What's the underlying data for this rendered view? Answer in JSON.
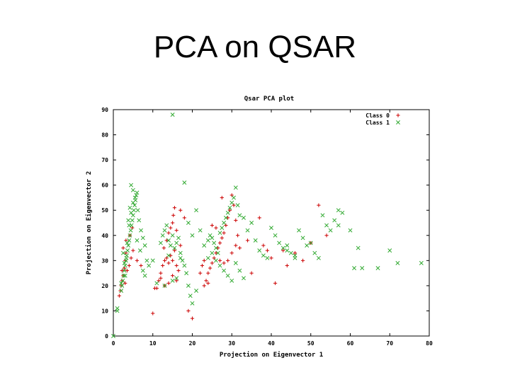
{
  "slide": {
    "title": "PCA on QSAR"
  },
  "chart_data": {
    "type": "scatter",
    "title": "Qsar PCA plot",
    "xlabel": "Projection on Eigenvector 1",
    "ylabel": "Projection on Eigenvector 2",
    "xlim": [
      0,
      80
    ],
    "ylim": [
      0,
      90
    ],
    "xticks": [
      0,
      10,
      20,
      30,
      40,
      50,
      60,
      70,
      80
    ],
    "yticks": [
      0,
      10,
      20,
      30,
      40,
      50,
      60,
      70,
      80,
      90
    ],
    "grid": false,
    "legend": "top-right",
    "series": [
      {
        "name": "Class 0",
        "marker": "+",
        "color": "#cc0000",
        "points": [
          [
            1.5,
            16
          ],
          [
            1.8,
            18
          ],
          [
            2,
            20
          ],
          [
            2.2,
            22
          ],
          [
            2.5,
            24
          ],
          [
            2.8,
            27
          ],
          [
            3,
            30
          ],
          [
            3.2,
            33
          ],
          [
            3.5,
            26
          ],
          [
            4,
            28
          ],
          [
            4.5,
            31
          ],
          [
            5,
            34
          ],
          [
            2.5,
            35
          ],
          [
            3.2,
            38
          ],
          [
            4.2,
            40
          ],
          [
            4.8,
            43
          ],
          [
            6,
            30
          ],
          [
            7,
            28
          ],
          [
            3,
            21
          ],
          [
            2.2,
            26
          ],
          [
            10,
            9
          ],
          [
            10.5,
            19
          ],
          [
            11,
            19
          ],
          [
            11.5,
            22
          ],
          [
            12,
            25
          ],
          [
            12.5,
            28
          ],
          [
            13,
            30
          ],
          [
            13.5,
            31
          ],
          [
            14,
            29
          ],
          [
            14.5,
            32
          ],
          [
            15,
            30
          ],
          [
            15.5,
            34
          ],
          [
            16,
            28
          ],
          [
            12.8,
            35
          ],
          [
            13.5,
            38
          ],
          [
            14,
            41
          ],
          [
            14.5,
            43
          ],
          [
            15,
            45
          ],
          [
            15.2,
            48
          ],
          [
            15.5,
            51
          ],
          [
            16,
            42
          ],
          [
            17,
            50
          ],
          [
            18,
            47
          ],
          [
            16.5,
            26
          ],
          [
            12,
            23
          ],
          [
            13,
            20
          ],
          [
            14,
            21
          ],
          [
            15,
            24
          ],
          [
            16,
            22
          ],
          [
            17,
            36
          ],
          [
            19,
            10
          ],
          [
            20,
            7
          ],
          [
            22,
            25
          ],
          [
            22.5,
            28
          ],
          [
            23,
            30
          ],
          [
            23.5,
            22
          ],
          [
            24,
            25
          ],
          [
            24.5,
            27
          ],
          [
            25,
            29
          ],
          [
            25.5,
            31
          ],
          [
            26,
            33
          ],
          [
            26.5,
            35
          ],
          [
            27,
            37
          ],
          [
            27.5,
            39
          ],
          [
            28,
            41
          ],
          [
            28.5,
            44
          ],
          [
            29,
            47
          ],
          [
            29.5,
            50
          ],
          [
            30,
            56
          ],
          [
            30.5,
            52
          ],
          [
            31,
            46
          ],
          [
            31.5,
            40
          ],
          [
            25,
            44
          ],
          [
            26,
            43
          ],
          [
            27,
            30
          ],
          [
            28,
            29
          ],
          [
            29,
            30
          ],
          [
            30,
            33
          ],
          [
            31,
            36
          ],
          [
            23,
            20
          ],
          [
            24,
            21
          ],
          [
            32,
            35
          ],
          [
            34,
            38
          ],
          [
            35,
            25
          ],
          [
            37,
            47
          ],
          [
            38,
            36
          ],
          [
            39,
            34
          ],
          [
            40,
            31
          ],
          [
            41,
            21
          ],
          [
            43,
            34
          ],
          [
            44,
            28
          ],
          [
            46,
            33
          ],
          [
            48,
            30
          ],
          [
            50,
            37
          ],
          [
            52,
            52
          ],
          [
            54,
            40
          ],
          [
            27.5,
            55
          ]
        ]
      },
      {
        "name": "Class 1",
        "marker": "x",
        "color": "#33aa33",
        "points": [
          [
            0,
            0
          ],
          [
            1,
            10
          ],
          [
            1,
            11
          ],
          [
            2,
            18
          ],
          [
            2.2,
            20
          ],
          [
            2.4,
            22
          ],
          [
            2.6,
            24
          ],
          [
            2.8,
            26
          ],
          [
            3,
            28
          ],
          [
            3.2,
            30
          ],
          [
            3.4,
            32
          ],
          [
            3.6,
            34
          ],
          [
            3.8,
            36
          ],
          [
            4,
            38
          ],
          [
            4.2,
            40
          ],
          [
            4.4,
            42
          ],
          [
            4.6,
            44
          ],
          [
            4.8,
            46
          ],
          [
            5,
            48
          ],
          [
            5.2,
            50
          ],
          [
            5.4,
            52
          ],
          [
            5.6,
            54
          ],
          [
            5.8,
            56
          ],
          [
            6,
            57
          ],
          [
            4.5,
            60
          ],
          [
            5,
            58
          ],
          [
            6.2,
            50
          ],
          [
            6.5,
            46
          ],
          [
            7,
            42
          ],
          [
            7.5,
            39
          ],
          [
            8,
            36
          ],
          [
            8.5,
            30
          ],
          [
            3,
            24
          ],
          [
            2,
            21
          ],
          [
            2.5,
            33
          ],
          [
            3.5,
            37
          ],
          [
            4,
            44
          ],
          [
            4.5,
            49
          ],
          [
            5,
            53
          ],
          [
            5.5,
            55
          ],
          [
            3.8,
            46
          ],
          [
            4.2,
            51
          ],
          [
            2.8,
            29
          ],
          [
            3.3,
            31
          ],
          [
            6,
            38
          ],
          [
            6.8,
            34
          ],
          [
            7.5,
            26
          ],
          [
            9,
            28
          ],
          [
            8,
            24
          ],
          [
            10,
            30
          ],
          [
            12,
            37
          ],
          [
            12.5,
            40
          ],
          [
            13,
            42
          ],
          [
            13.5,
            44
          ],
          [
            14,
            38
          ],
          [
            14.5,
            36
          ],
          [
            15,
            40
          ],
          [
            15.5,
            35
          ],
          [
            16,
            37
          ],
          [
            16.5,
            39
          ],
          [
            17,
            33
          ],
          [
            17.5,
            30
          ],
          [
            18,
            28
          ],
          [
            18.5,
            25
          ],
          [
            19,
            20
          ],
          [
            19.5,
            16
          ],
          [
            20,
            13
          ],
          [
            21,
            18
          ],
          [
            15,
            88
          ],
          [
            18,
            61
          ],
          [
            15,
            22
          ],
          [
            13,
            20
          ],
          [
            16,
            23
          ],
          [
            19,
            45
          ],
          [
            20,
            40
          ],
          [
            21,
            50
          ],
          [
            22,
            42
          ],
          [
            23,
            36
          ],
          [
            17,
            31
          ],
          [
            14,
            32
          ],
          [
            11,
            21
          ],
          [
            24,
            38
          ],
          [
            24.5,
            40
          ],
          [
            25,
            39
          ],
          [
            25.5,
            37
          ],
          [
            26,
            35
          ],
          [
            26.5,
            33
          ],
          [
            27,
            41
          ],
          [
            27.5,
            43
          ],
          [
            28,
            45
          ],
          [
            28.5,
            47
          ],
          [
            29,
            49
          ],
          [
            29.5,
            51
          ],
          [
            30,
            53
          ],
          [
            30.5,
            55
          ],
          [
            31,
            59
          ],
          [
            31.5,
            52
          ],
          [
            32,
            48
          ],
          [
            33,
            47
          ],
          [
            34,
            42
          ],
          [
            35,
            45
          ],
          [
            24,
            31
          ],
          [
            25,
            33
          ],
          [
            26,
            30
          ],
          [
            27,
            28
          ],
          [
            28,
            26
          ],
          [
            29,
            24
          ],
          [
            30,
            22
          ],
          [
            31,
            29
          ],
          [
            32,
            26
          ],
          [
            33,
            23
          ],
          [
            36,
            38
          ],
          [
            37,
            34
          ],
          [
            38,
            32
          ],
          [
            39,
            31
          ],
          [
            40,
            43
          ],
          [
            41,
            40
          ],
          [
            42,
            37
          ],
          [
            43,
            35
          ],
          [
            44,
            34
          ],
          [
            45,
            33
          ],
          [
            46,
            31
          ],
          [
            47,
            42
          ],
          [
            48,
            39
          ],
          [
            50,
            37
          ],
          [
            51,
            33
          ],
          [
            52,
            31
          ],
          [
            53,
            48
          ],
          [
            54,
            44
          ],
          [
            55,
            42
          ],
          [
            56,
            46
          ],
          [
            57,
            44
          ],
          [
            58,
            49
          ],
          [
            60,
            42
          ],
          [
            61,
            27
          ],
          [
            62,
            35
          ],
          [
            63,
            27
          ],
          [
            67,
            27
          ],
          [
            70,
            34
          ],
          [
            72,
            29
          ],
          [
            78,
            29
          ],
          [
            57,
            50
          ],
          [
            46,
            32
          ],
          [
            49,
            36
          ],
          [
            44,
            36
          ]
        ]
      }
    ]
  }
}
